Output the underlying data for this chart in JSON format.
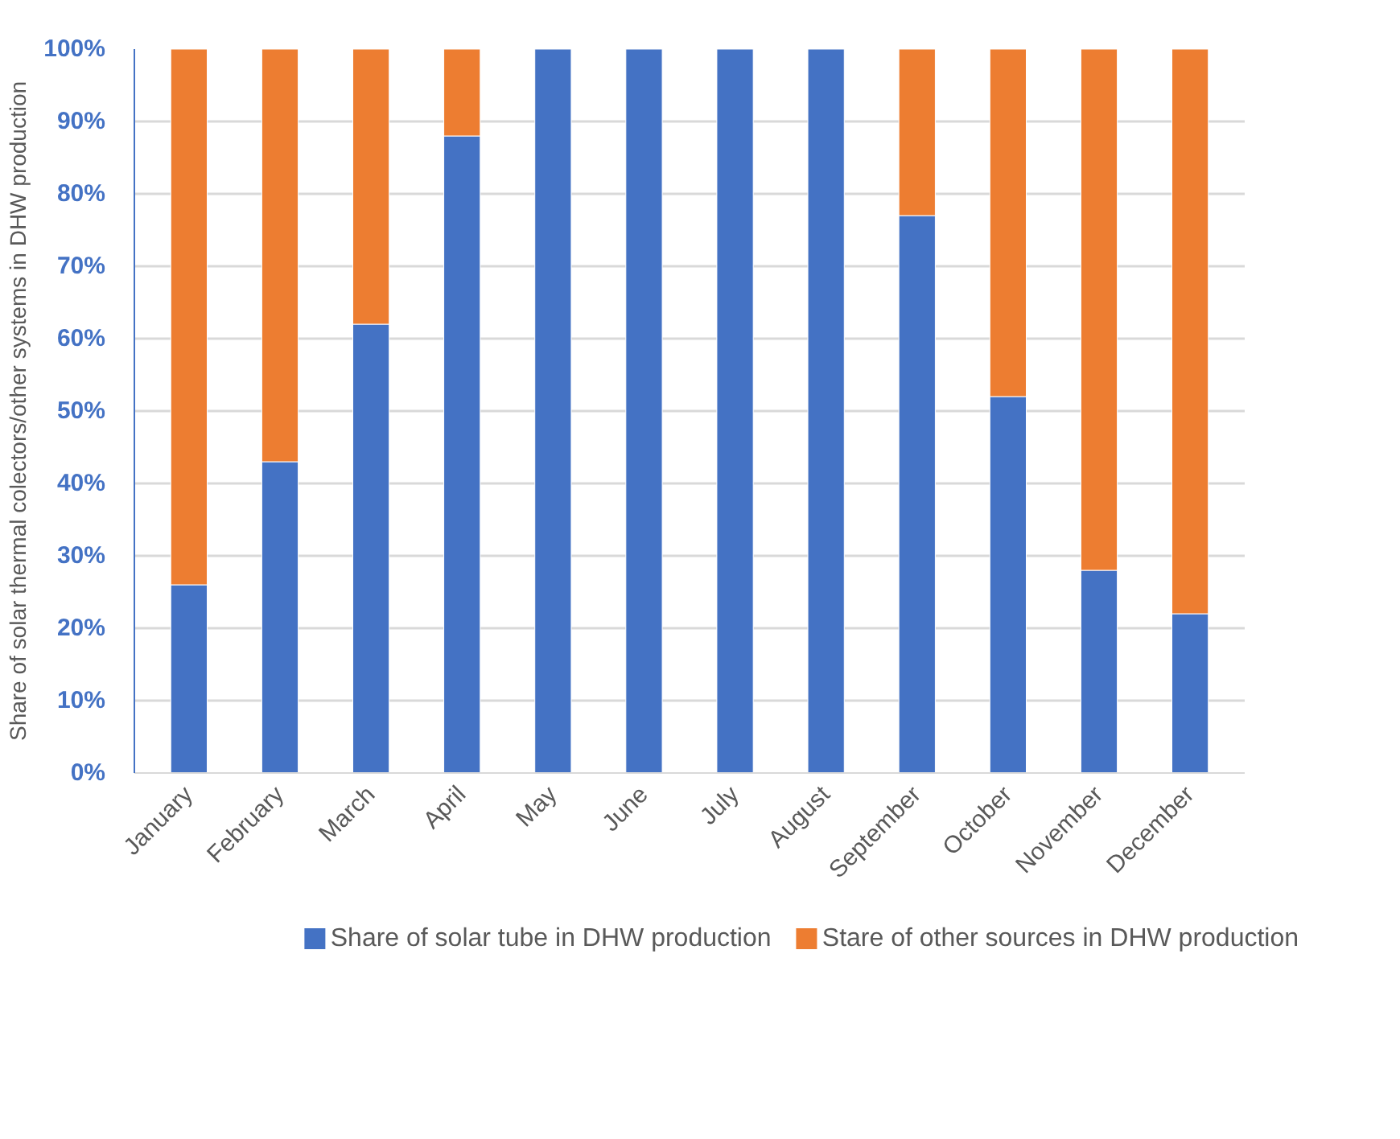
{
  "chart_data": {
    "type": "bar",
    "stacked": true,
    "ylabel": "Share of solar thermal colectors/other systems in DHW production",
    "categories": [
      "January",
      "February",
      "March",
      "April",
      "May",
      "June",
      "July",
      "August",
      "September",
      "October",
      "November",
      "December"
    ],
    "series": [
      {
        "name": "Share of solar tube in DHW production",
        "color": "#4472c4",
        "values": [
          26,
          43,
          62,
          88,
          100,
          100,
          100,
          100,
          77,
          52,
          28,
          22
        ]
      },
      {
        "name": "Stare of other sources in DHW production",
        "color": "#ed7d31",
        "values": [
          74,
          57,
          38,
          12,
          0,
          0,
          0,
          0,
          23,
          48,
          72,
          78
        ]
      }
    ],
    "ylim": [
      0,
      100
    ],
    "yticks": [
      {
        "value": 0,
        "label": "0%"
      },
      {
        "value": 10,
        "label": "10%"
      },
      {
        "value": 20,
        "label": "20%"
      },
      {
        "value": 30,
        "label": "30%"
      },
      {
        "value": 40,
        "label": "40%"
      },
      {
        "value": 50,
        "label": "50%"
      },
      {
        "value": 60,
        "label": "60%"
      },
      {
        "value": 70,
        "label": "70%"
      },
      {
        "value": 80,
        "label": "80%"
      },
      {
        "value": 90,
        "label": "90%"
      },
      {
        "value": 100,
        "label": "100%"
      }
    ],
    "grid": "y",
    "legend": "bottom"
  }
}
